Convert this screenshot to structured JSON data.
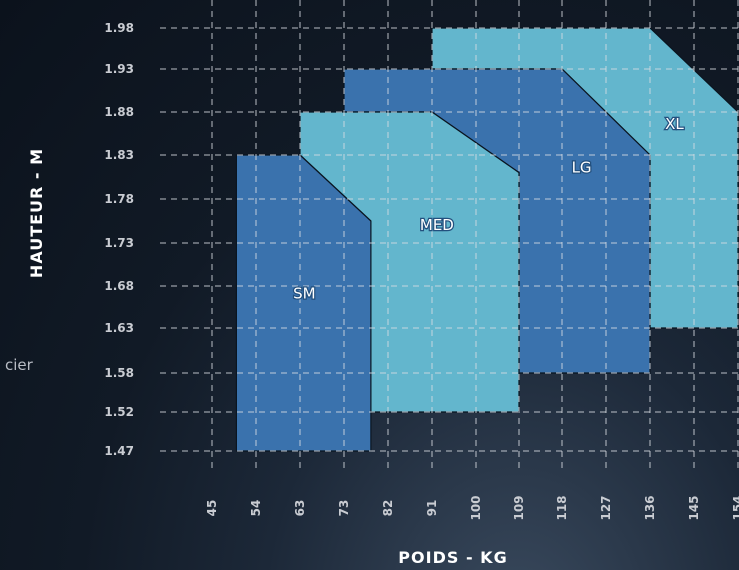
{
  "side_text": "cier",
  "chart_data": {
    "type": "area",
    "xlabel": "POIDS - KG",
    "ylabel": "HAUTEUR - M",
    "x_ticks": [
      "45",
      "54",
      "63",
      "73",
      "82",
      "91",
      "100",
      "109",
      "118",
      "127",
      "136",
      "145",
      "154"
    ],
    "y_ticks": [
      "1.98",
      "1.93",
      "1.88",
      "1.83",
      "1.78",
      "1.73",
      "1.68",
      "1.63",
      "1.58",
      "1.52",
      "1.47"
    ],
    "grid": true,
    "series": [
      {
        "name": "XL",
        "color": "#63b6cd",
        "points": [
          [
            91,
            1.98
          ],
          [
            136,
            1.98
          ],
          [
            154,
            1.88
          ],
          [
            154,
            1.63
          ],
          [
            136,
            1.63
          ],
          [
            136,
            1.83
          ],
          [
            118,
            1.93
          ],
          [
            91,
            1.93
          ]
        ]
      },
      {
        "name": "LG",
        "color": "#3a72ad",
        "points": [
          [
            73,
            1.93
          ],
          [
            118,
            1.93
          ],
          [
            136,
            1.83
          ],
          [
            136,
            1.58
          ],
          [
            109,
            1.58
          ],
          [
            109,
            1.81
          ],
          [
            91,
            1.88
          ],
          [
            73,
            1.88
          ]
        ]
      },
      {
        "name": "MED",
        "color": "#63b6cd",
        "points": [
          [
            63,
            1.88
          ],
          [
            91,
            1.88
          ],
          [
            109,
            1.81
          ],
          [
            109,
            1.52
          ],
          [
            78.5,
            1.52
          ],
          [
            78.5,
            1.755
          ],
          [
            63,
            1.83
          ]
        ]
      },
      {
        "name": "SM",
        "color": "#3a72ad",
        "points": [
          [
            50,
            1.83
          ],
          [
            63,
            1.83
          ],
          [
            78.5,
            1.755
          ],
          [
            78.5,
            1.47
          ],
          [
            50,
            1.47
          ]
        ]
      }
    ],
    "label_positions": {
      "XL": [
        141,
        1.86
      ],
      "LG": [
        122,
        1.81
      ],
      "MED": [
        92,
        1.745
      ],
      "SM": [
        64,
        1.665
      ]
    }
  }
}
